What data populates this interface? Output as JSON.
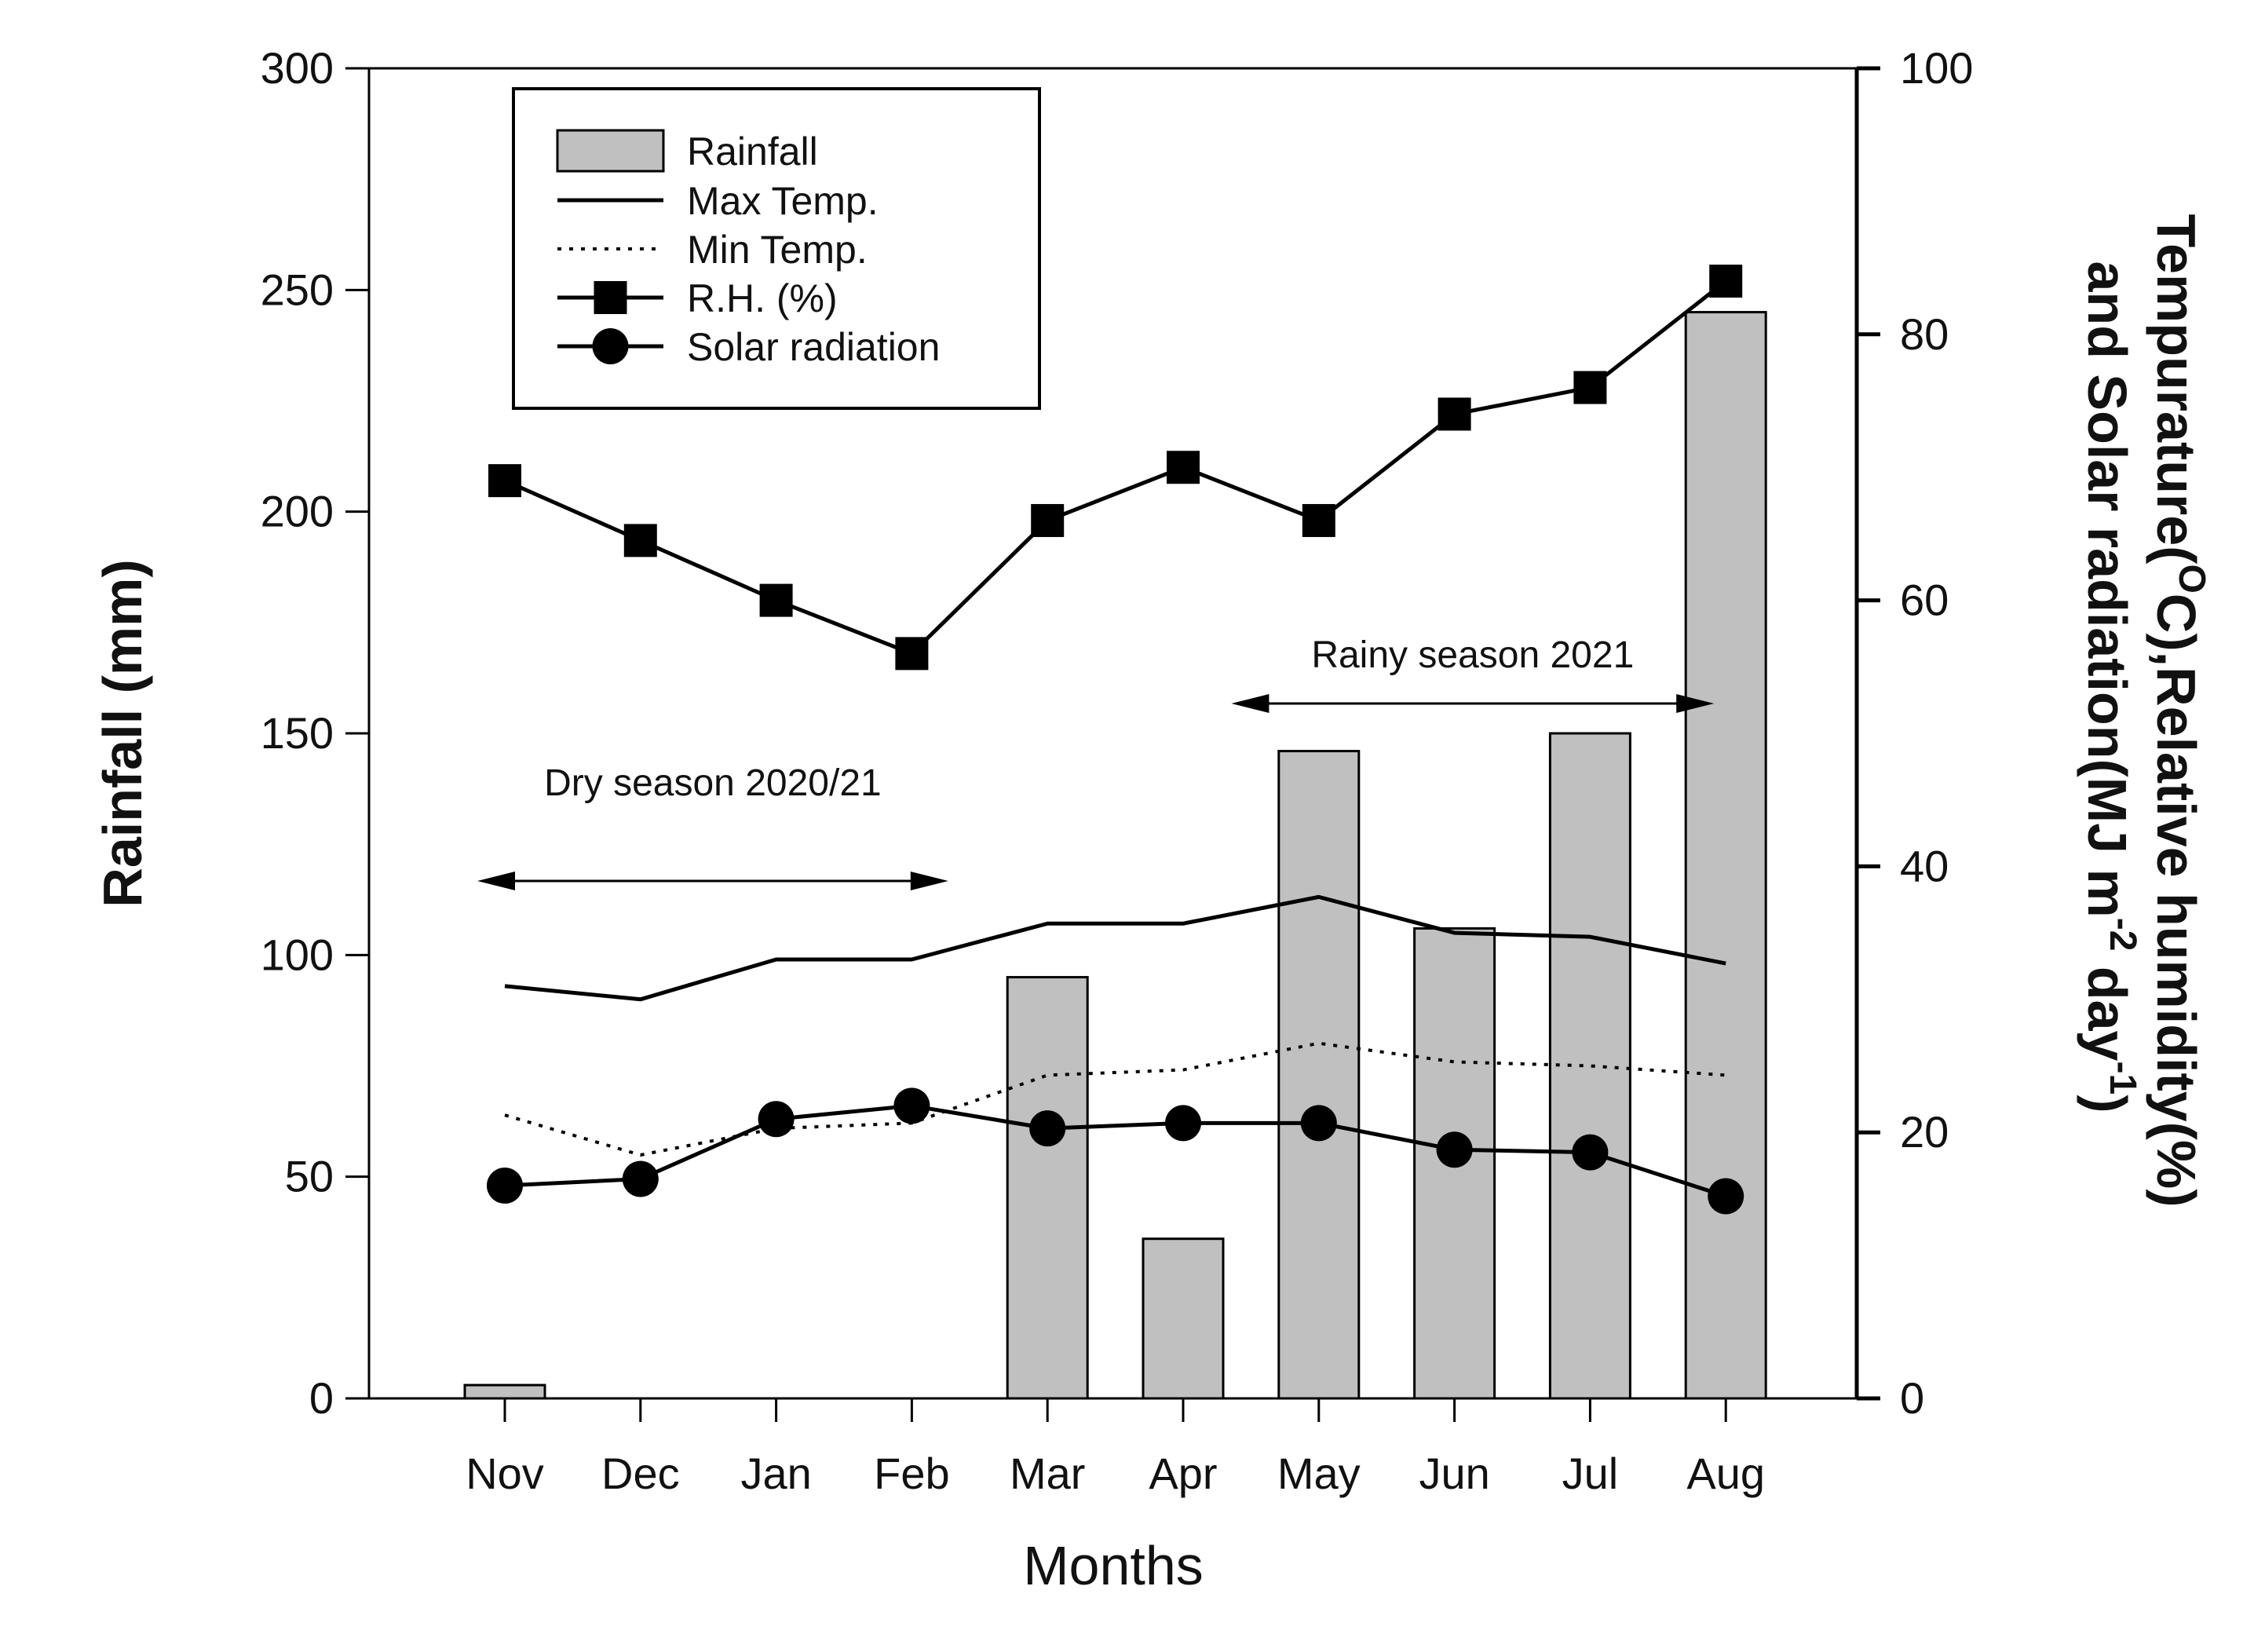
{
  "chart_data": {
    "type": "bar",
    "categories": [
      "Nov",
      "Dec",
      "Jan",
      "Feb",
      "Mar",
      "Apr",
      "May",
      "Jun",
      "Jul",
      "Aug"
    ],
    "xlabel": "Months",
    "ylabel": "Rainfall (mm)",
    "y2label_line1": "Tempurature(",
    "y2label_sup1": "O",
    "y2label_line1b": "C),Relative humidity(%)",
    "y2label_line2a": "and Solar radiation(MJ m",
    "y2label_sup2": "-2",
    "y2label_line2b": " day",
    "y2label_sup3": "-1",
    "y2label_line2c": ")",
    "ylim": [
      0,
      300
    ],
    "y2lim": [
      0,
      100
    ],
    "yticks": [
      0,
      50,
      100,
      150,
      200,
      250,
      300
    ],
    "y2ticks": [
      0,
      20,
      40,
      60,
      80,
      100
    ],
    "series": [
      {
        "name": "Rainfall",
        "type": "bar",
        "axis": "left",
        "color": "#c0c0c0",
        "values": [
          3,
          0,
          0,
          0,
          95,
          36,
          146,
          106,
          150,
          245
        ]
      },
      {
        "name": "Max Temp.",
        "type": "line",
        "axis": "right",
        "style": "solid",
        "values": [
          31,
          30,
          33,
          33,
          35.7,
          35.7,
          37.7,
          35,
          34.7,
          32.7
        ]
      },
      {
        "name": "Min Temp.",
        "type": "line",
        "axis": "right",
        "style": "dotted",
        "values": [
          21.3,
          18.3,
          20.3,
          20.7,
          24.3,
          24.7,
          26.7,
          25.3,
          25,
          24.3
        ]
      },
      {
        "name": "R.H. (%)",
        "type": "line",
        "axis": "right",
        "style": "solid",
        "marker": "square",
        "values": [
          69,
          64.5,
          60,
          56,
          66,
          70,
          66,
          74,
          76,
          84
        ]
      },
      {
        "name": "Solar radiation",
        "type": "line",
        "axis": "right",
        "style": "solid",
        "marker": "circle",
        "values": [
          16,
          16.5,
          21,
          22,
          20.3,
          20.7,
          20.7,
          18.7,
          18.5,
          15.2
        ]
      }
    ],
    "annotations": [
      {
        "text": "Dry season 2020/21",
        "from_category": 0,
        "to_category": 3.5
      },
      {
        "text": "Rainy season 2021",
        "from_category": 5.5,
        "to_category": 9
      }
    ],
    "legend_position": "top-left"
  }
}
